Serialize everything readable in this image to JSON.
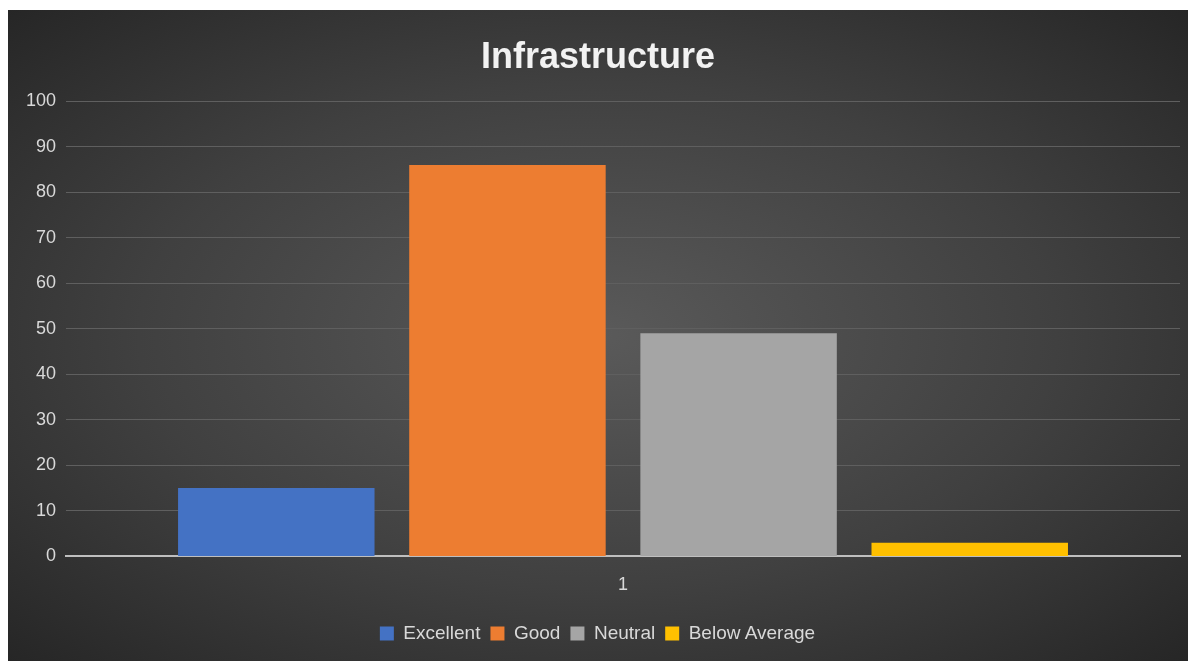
{
  "chart_data": {
    "type": "bar",
    "title": "Infrastructure",
    "categories": [
      "1"
    ],
    "series": [
      {
        "name": "Excellent",
        "color": "#4472c4",
        "values": [
          15
        ]
      },
      {
        "name": "Good",
        "color": "#ed7d31",
        "values": [
          86
        ]
      },
      {
        "name": "Neutral",
        "color": "#a5a5a5",
        "values": [
          49
        ]
      },
      {
        "name": "Below Average",
        "color": "#ffc000",
        "values": [
          3
        ]
      }
    ],
    "ylim": [
      0,
      100
    ],
    "yticks": [
      0,
      10,
      20,
      30,
      40,
      50,
      60,
      70,
      80,
      90,
      100
    ],
    "grid": "y",
    "legend": "bottom"
  }
}
